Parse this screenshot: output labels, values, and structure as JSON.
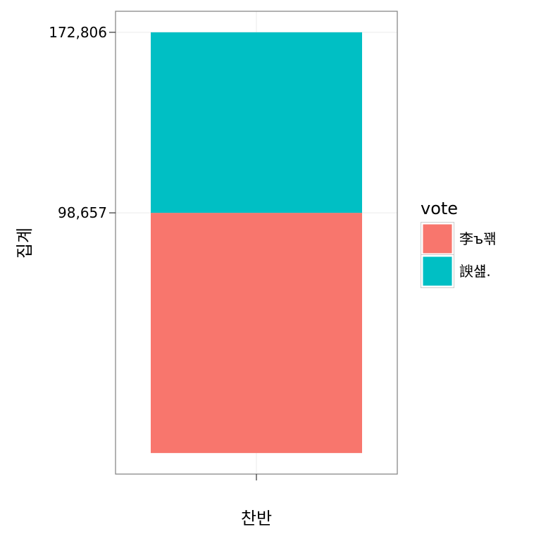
{
  "chart_data": {
    "type": "bar",
    "stacked": true,
    "categories": [
      "찬반"
    ],
    "series": [
      {
        "name": "李ъ꽦",
        "values": [
          98657
        ],
        "color": "#F8766D"
      },
      {
        "name": "諛섎.",
        "values": [
          74149
        ],
        "color": "#00BFC4"
      }
    ],
    "xlabel": "찬반",
    "ylabel": "집계",
    "yticks": [
      98657,
      172806
    ],
    "ytick_labels": [
      "98,657",
      "172,806"
    ],
    "ylim": [
      -8640,
      181446
    ],
    "grid": true,
    "legend": {
      "title": "vote",
      "placement": "right"
    }
  }
}
